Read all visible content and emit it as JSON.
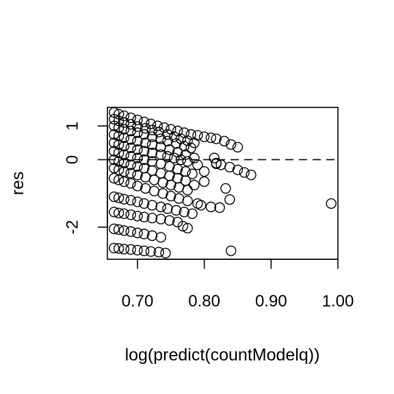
{
  "chart_data": {
    "type": "scatter",
    "title": "",
    "xlabel": "log(predict(countModelq))",
    "ylabel": "res",
    "xlim": [
      0.655,
      1.0
    ],
    "ylim": [
      -2.95,
      1.55
    ],
    "x_ticks": [
      0.7,
      0.8,
      0.9,
      1.0
    ],
    "x_tick_labels": [
      "0.70",
      "0.80",
      "0.90",
      "1.00"
    ],
    "y_ticks": [
      -2,
      0,
      1
    ],
    "y_tick_labels": [
      "-2",
      "0",
      "1"
    ],
    "reference_line": {
      "y": 0,
      "style": "dashed"
    },
    "grid": false,
    "marker": "open-circle",
    "series": [
      {
        "points": [
          [
            0.665,
            1.4
          ],
          [
            0.672,
            1.35
          ],
          [
            0.68,
            1.3
          ],
          [
            0.69,
            1.24
          ],
          [
            0.7,
            1.18
          ],
          [
            0.71,
            1.12
          ],
          [
            0.72,
            1.06
          ],
          [
            0.73,
            1.0
          ],
          [
            0.74,
            0.95
          ],
          [
            0.75,
            0.9
          ],
          [
            0.76,
            0.85
          ],
          [
            0.77,
            0.8
          ],
          [
            0.78,
            0.75
          ],
          [
            0.79,
            0.72
          ],
          [
            0.8,
            0.68
          ],
          [
            0.81,
            0.65
          ],
          [
            0.818,
            0.62
          ],
          [
            0.83,
            0.55
          ],
          [
            0.84,
            0.45
          ],
          [
            0.85,
            0.37
          ],
          [
            0.665,
            1.2
          ],
          [
            0.672,
            1.15
          ],
          [
            0.68,
            1.1
          ],
          [
            0.69,
            1.05
          ],
          [
            0.7,
            0.98
          ],
          [
            0.712,
            0.93
          ],
          [
            0.722,
            0.88
          ],
          [
            0.732,
            0.82
          ],
          [
            0.745,
            0.75
          ],
          [
            0.755,
            0.68
          ],
          [
            0.765,
            0.62
          ],
          [
            0.775,
            0.56
          ],
          [
            0.785,
            0.5
          ],
          [
            0.665,
            1.0
          ],
          [
            0.672,
            0.95
          ],
          [
            0.68,
            0.9
          ],
          [
            0.69,
            0.85
          ],
          [
            0.7,
            0.8
          ],
          [
            0.71,
            0.75
          ],
          [
            0.722,
            0.68
          ],
          [
            0.735,
            0.62
          ],
          [
            0.745,
            0.55
          ],
          [
            0.758,
            0.48
          ],
          [
            0.77,
            0.4
          ],
          [
            0.78,
            0.35
          ],
          [
            0.665,
            0.75
          ],
          [
            0.672,
            0.7
          ],
          [
            0.68,
            0.65
          ],
          [
            0.69,
            0.6
          ],
          [
            0.7,
            0.55
          ],
          [
            0.712,
            0.5
          ],
          [
            0.722,
            0.45
          ],
          [
            0.735,
            0.38
          ],
          [
            0.748,
            0.3
          ],
          [
            0.76,
            0.22
          ],
          [
            0.772,
            0.15
          ],
          [
            0.785,
            0.05
          ],
          [
            0.665,
            0.5
          ],
          [
            0.672,
            0.45
          ],
          [
            0.68,
            0.4
          ],
          [
            0.69,
            0.35
          ],
          [
            0.7,
            0.3
          ],
          [
            0.71,
            0.25
          ],
          [
            0.722,
            0.2
          ],
          [
            0.735,
            0.15
          ],
          [
            0.745,
            0.1
          ],
          [
            0.755,
            0.05
          ],
          [
            0.765,
            0.0
          ],
          [
            0.775,
            -0.05
          ],
          [
            0.79,
            -0.15
          ],
          [
            0.8,
            -0.35
          ],
          [
            0.818,
            -0.1
          ],
          [
            0.825,
            -0.15
          ],
          [
            0.838,
            -0.22
          ],
          [
            0.85,
            -0.3
          ],
          [
            0.86,
            -0.38
          ],
          [
            0.87,
            -0.45
          ],
          [
            0.665,
            0.25
          ],
          [
            0.672,
            0.2
          ],
          [
            0.68,
            0.15
          ],
          [
            0.69,
            0.1
          ],
          [
            0.7,
            0.05
          ],
          [
            0.71,
            0.0
          ],
          [
            0.722,
            -0.05
          ],
          [
            0.735,
            -0.12
          ],
          [
            0.748,
            -0.2
          ],
          [
            0.76,
            -0.28
          ],
          [
            0.772,
            -0.35
          ],
          [
            0.782,
            -0.42
          ],
          [
            0.8,
            -0.65
          ],
          [
            0.815,
            0.05
          ],
          [
            0.818,
            -0.12
          ],
          [
            0.665,
            0.0
          ],
          [
            0.672,
            -0.05
          ],
          [
            0.68,
            -0.1
          ],
          [
            0.69,
            -0.15
          ],
          [
            0.7,
            -0.2
          ],
          [
            0.71,
            -0.25
          ],
          [
            0.722,
            -0.32
          ],
          [
            0.735,
            -0.4
          ],
          [
            0.748,
            -0.48
          ],
          [
            0.76,
            -0.55
          ],
          [
            0.772,
            -0.62
          ],
          [
            0.785,
            -0.75
          ],
          [
            0.665,
            -0.25
          ],
          [
            0.672,
            -0.3
          ],
          [
            0.68,
            -0.35
          ],
          [
            0.69,
            -0.4
          ],
          [
            0.7,
            -0.45
          ],
          [
            0.712,
            -0.52
          ],
          [
            0.725,
            -0.6
          ],
          [
            0.738,
            -0.68
          ],
          [
            0.75,
            -0.75
          ],
          [
            0.762,
            -0.82
          ],
          [
            0.775,
            -0.9
          ],
          [
            0.665,
            -0.55
          ],
          [
            0.672,
            -0.6
          ],
          [
            0.68,
            -0.65
          ],
          [
            0.69,
            -0.7
          ],
          [
            0.7,
            -0.78
          ],
          [
            0.712,
            -0.85
          ],
          [
            0.725,
            -0.93
          ],
          [
            0.738,
            -1.0
          ],
          [
            0.75,
            -1.08
          ],
          [
            0.762,
            -1.15
          ],
          [
            0.775,
            -1.22
          ],
          [
            0.79,
            -1.3
          ],
          [
            0.665,
            -1.1
          ],
          [
            0.672,
            -1.13
          ],
          [
            0.68,
            -1.17
          ],
          [
            0.69,
            -1.2
          ],
          [
            0.7,
            -1.25
          ],
          [
            0.71,
            -1.3
          ],
          [
            0.722,
            -1.35
          ],
          [
            0.735,
            -1.4
          ],
          [
            0.745,
            -1.45
          ],
          [
            0.758,
            -1.5
          ],
          [
            0.77,
            -1.55
          ],
          [
            0.782,
            -1.6
          ],
          [
            0.795,
            -1.35
          ],
          [
            0.81,
            -1.4
          ],
          [
            0.823,
            -1.42
          ],
          [
            0.838,
            -1.18
          ],
          [
            0.832,
            -0.85
          ],
          [
            0.99,
            -1.3
          ],
          [
            0.665,
            -1.55
          ],
          [
            0.672,
            -1.58
          ],
          [
            0.68,
            -1.6
          ],
          [
            0.69,
            -1.63
          ],
          [
            0.7,
            -1.67
          ],
          [
            0.71,
            -1.7
          ],
          [
            0.722,
            -1.73
          ],
          [
            0.735,
            -1.76
          ],
          [
            0.748,
            -1.8
          ],
          [
            0.76,
            -1.85
          ],
          [
            0.768,
            -1.97
          ],
          [
            0.775,
            -2.03
          ],
          [
            0.665,
            -2.05
          ],
          [
            0.672,
            -2.07
          ],
          [
            0.68,
            -2.1
          ],
          [
            0.69,
            -2.13
          ],
          [
            0.7,
            -2.17
          ],
          [
            0.71,
            -2.2
          ],
          [
            0.722,
            -2.25
          ],
          [
            0.735,
            -2.3
          ],
          [
            0.665,
            -2.62
          ],
          [
            0.672,
            -2.63
          ],
          [
            0.68,
            -2.65
          ],
          [
            0.69,
            -2.66
          ],
          [
            0.7,
            -2.68
          ],
          [
            0.71,
            -2.7
          ],
          [
            0.72,
            -2.72
          ],
          [
            0.732,
            -2.74
          ],
          [
            0.742,
            -2.77
          ],
          [
            0.84,
            -2.7
          ]
        ]
      }
    ]
  }
}
